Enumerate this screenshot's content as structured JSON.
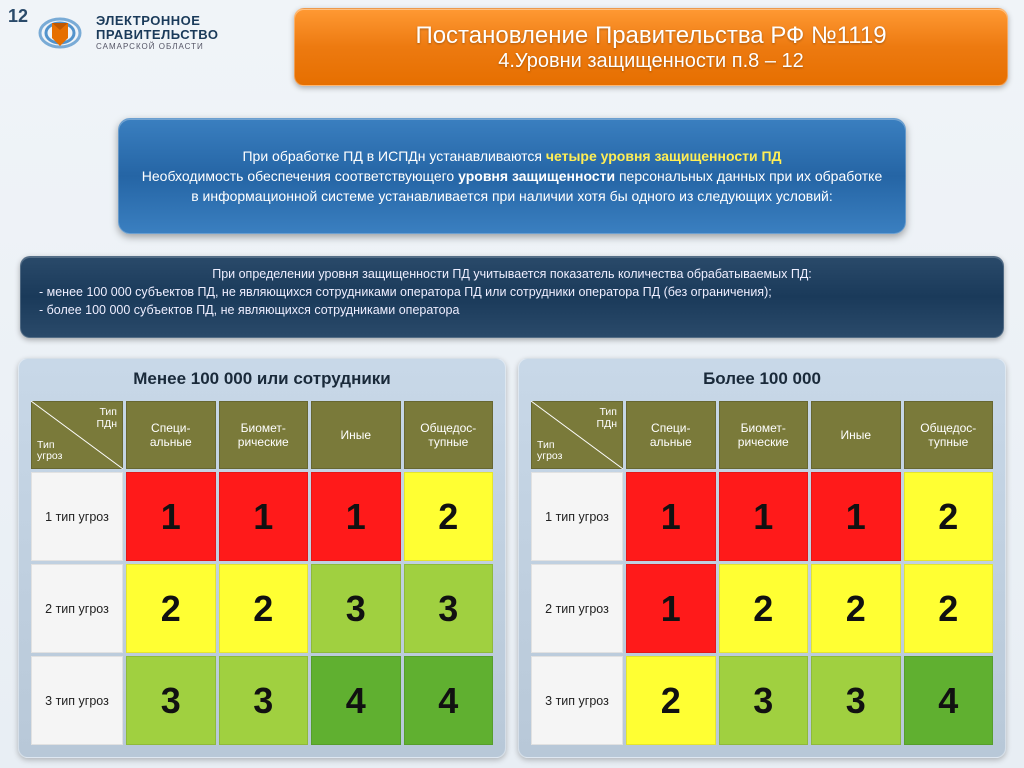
{
  "slide_number": "12",
  "logo": {
    "line1": "ЭЛЕКТРОННОЕ",
    "line2": "ПРАВИТЕЛЬСТВО",
    "line3": "САМАРСКОЙ ОБЛАСТИ"
  },
  "title": {
    "line1": "Постановление Правительства РФ №1119",
    "line2": "4.Уровни защищенности п.8 – 12"
  },
  "info1": {
    "text_before": "При обработке ПД в ИСПДн устанавливаются ",
    "highlight1": "четыре уровня защищенности ПД",
    "text_mid1": " Необходимость обеспечения соответствующего ",
    "highlight2": "уровня защищенности",
    "text_after": " персональных данных при их обработке в информационной системе устанавливается при наличии хотя бы одного из следующих условий:"
  },
  "info2": {
    "line1": "При определении уровня защищенности ПД  учитывается  показатель  количества  обрабатываемых ПД:",
    "bullet1": "-   менее 100 000  субъектов  ПД, не являющихся сотрудниками оператора ПД  или  сотрудники  оператора ПД  (без ограничения);",
    "bullet2": "-   более 100 000  субъектов  ПД, не являющихся сотрудниками оператора"
  },
  "palette": {
    "header_olive": "#7a7a3a",
    "rowhead_grey": "#f5f5f5",
    "level1": "#ff1a1a",
    "level2": "#ffff33",
    "level3": "#a0d040",
    "level4": "#60b030"
  },
  "table_headers": {
    "corner_top": "Тип ПДн",
    "corner_bottom": "Тип угроз",
    "cols": [
      "Специ-альные",
      "Биомет-рические",
      "Иные",
      "Общедос-тупные"
    ],
    "rows": [
      "1 тип угроз",
      "2 тип угроз",
      "3 тип угроз"
    ]
  },
  "tables": [
    {
      "title": "Менее 100 000 или сотрудники",
      "cells": [
        [
          "1",
          "1",
          "1",
          "2"
        ],
        [
          "2",
          "2",
          "3",
          "3"
        ],
        [
          "3",
          "3",
          "4",
          "4"
        ]
      ]
    },
    {
      "title": "Более 100 000",
      "cells": [
        [
          "1",
          "1",
          "1",
          "2"
        ],
        [
          "1",
          "2",
          "2",
          "2"
        ],
        [
          "2",
          "3",
          "3",
          "4"
        ]
      ]
    }
  ]
}
